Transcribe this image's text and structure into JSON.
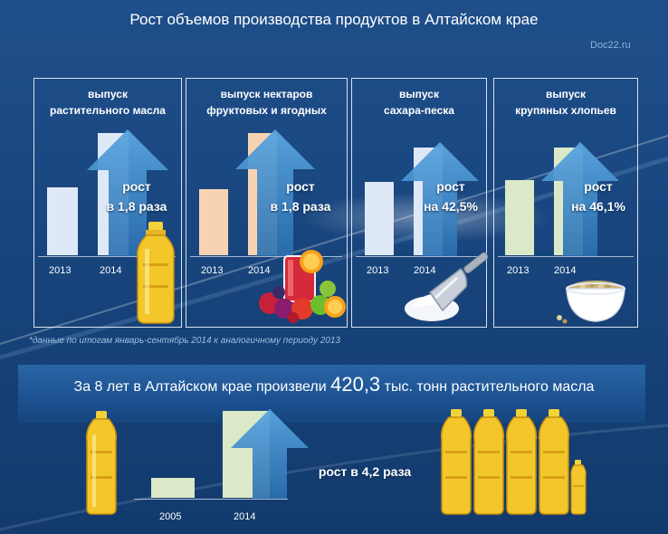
{
  "title": "Рост объемов производства продуктов в Алтайском крае",
  "source": "Doc22.ru",
  "colors": {
    "background": "#1a4a85",
    "arrow": "#3c8fd0",
    "oil_bar": "#dfe8f6",
    "nectar_bar": "#f8d3b3",
    "sugar_bar": "#dfe8f6",
    "cereal_bar": "#dbe9c8"
  },
  "panels": [
    {
      "label_line1": "выпуск",
      "label_line2": "растительного масла",
      "year1": "2013",
      "year2": "2014",
      "growth_line1": "рост",
      "growth_line2": "в 1,8 раза",
      "value_2013": 1,
      "value_2014": 1.8,
      "image": "oil-bottle-icon"
    },
    {
      "label_line1": "выпуск нектаров",
      "label_line2": "фруктовых и ягодных",
      "year1": "2013",
      "year2": "2014",
      "growth_line1": "рост",
      "growth_line2": "в 1,8 раза",
      "value_2013": 1,
      "value_2014": 1.8,
      "image": "fruit-juice-icon"
    },
    {
      "label_line1": "выпуск",
      "label_line2": "сахара-песка",
      "year1": "2013",
      "year2": "2014",
      "growth_line1": "рост",
      "growth_line2": "на 42,5%",
      "value_2013": 1,
      "value_2014": 1.425,
      "image": "sugar-scoop-icon"
    },
    {
      "label_line1": "выпуск",
      "label_line2": "крупяных хлопьев",
      "year1": "2013",
      "year2": "2014",
      "growth_line1": "рост",
      "growth_line2": "на 46,1%",
      "value_2013": 1,
      "value_2014": 1.461,
      "image": "cereal-bowl-icon"
    }
  ],
  "footnote": "*данные по итогам январь-сентябрь 2014 к аналогичному периоду 2013",
  "banner": {
    "text_before": "За 8 лет в Алтайском крае произвели",
    "value": "420,3",
    "text_after": "тыс. тонн растительного масла"
  },
  "bottom_chart": {
    "year1": "2005",
    "year2": "2014",
    "value_2005": 1,
    "value_2014": 4.2,
    "growth": "рост в 4,2 раза"
  }
}
